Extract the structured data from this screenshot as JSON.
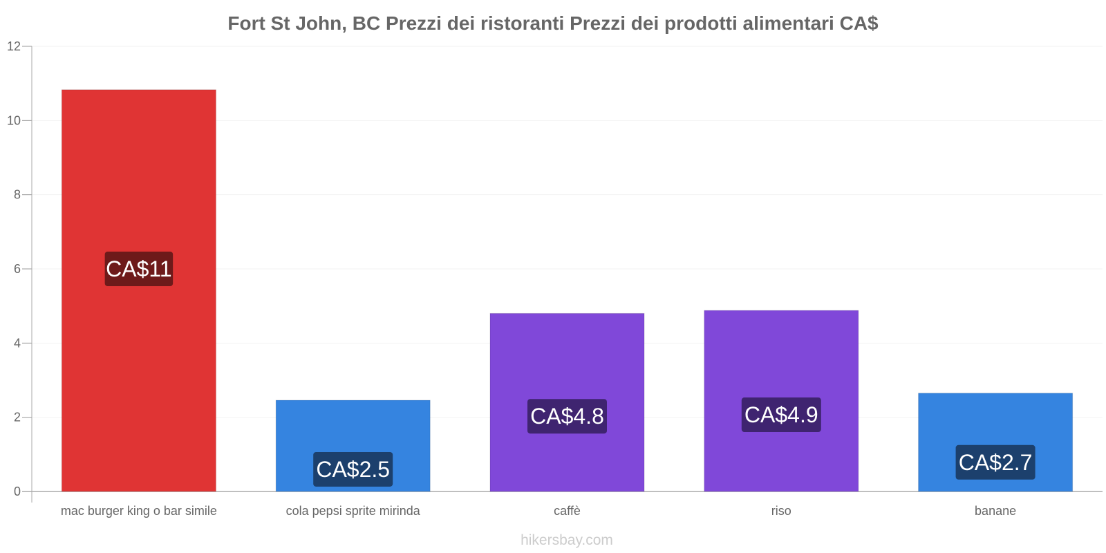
{
  "chart_data": {
    "type": "bar",
    "title": "Fort St John, BC Prezzi dei ristoranti Prezzi dei prodotti alimentari CA$",
    "categories": [
      "mac burger king o bar simile",
      "cola pepsi sprite mirinda",
      "caffè",
      "riso",
      "banane"
    ],
    "values": [
      10.83,
      2.46,
      4.8,
      4.88,
      2.65
    ],
    "value_labels": [
      "CA$11",
      "CA$2.5",
      "CA$4.8",
      "CA$4.9",
      "CA$2.7"
    ],
    "colors": [
      "#e03434",
      "#3584e0",
      "#8048d9",
      "#8048d9",
      "#3584e0"
    ],
    "label_bg_colors": [
      "#6e1a1a",
      "#1c406d",
      "#3f2470",
      "#3f2470",
      "#1c406d"
    ],
    "yticks": [
      "0",
      "2",
      "4",
      "6",
      "8",
      "10",
      "12"
    ],
    "ylim": [
      0,
      12
    ],
    "xlabel": "",
    "ylabel": "",
    "grid": true
  },
  "watermark": "hikersbay.com"
}
